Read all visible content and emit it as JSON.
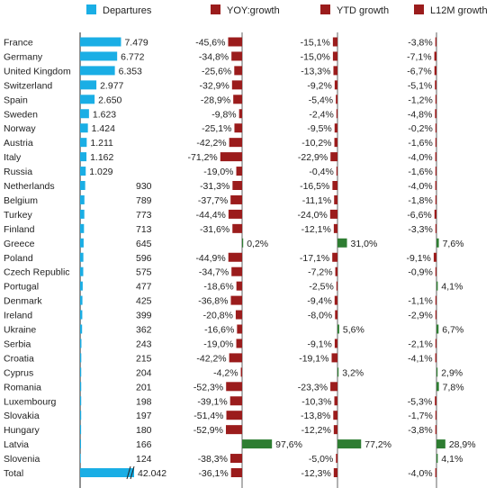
{
  "chart_data": {
    "type": "bar",
    "legend": [
      {
        "label": "Departures",
        "color": "#1aaee5"
      },
      {
        "label": "YOY:growth",
        "color": "#9b1c1c"
      },
      {
        "label": "YTD growth",
        "color": "#9b1c1c"
      },
      {
        "label": "L12M growth",
        "color": "#9b1c1c"
      }
    ],
    "negative_color": "#9b1c1c",
    "positive_color": "#2e7d32",
    "departures_color": "#1aaee5",
    "rows": [
      {
        "country": "France",
        "departures": 7479,
        "departures_label": "7.479",
        "yoy": -45.6,
        "yoy_label": "-45,6%",
        "ytd": -15.1,
        "ytd_label": "-15,1%",
        "l12m": -3.8,
        "l12m_label": "-3,8%"
      },
      {
        "country": "Germany",
        "departures": 6772,
        "departures_label": "6.772",
        "yoy": -34.8,
        "yoy_label": "-34,8%",
        "ytd": -15.0,
        "ytd_label": "-15,0%",
        "l12m": -7.1,
        "l12m_label": "-7,1%"
      },
      {
        "country": "United Kingdom",
        "departures": 6353,
        "departures_label": "6.353",
        "yoy": -25.6,
        "yoy_label": "-25,6%",
        "ytd": -13.3,
        "ytd_label": "-13,3%",
        "l12m": -6.7,
        "l12m_label": "-6,7%"
      },
      {
        "country": "Switzerland",
        "departures": 2977,
        "departures_label": "2.977",
        "yoy": -32.9,
        "yoy_label": "-32,9%",
        "ytd": -9.2,
        "ytd_label": "-9,2%",
        "l12m": -5.1,
        "l12m_label": "-5,1%"
      },
      {
        "country": "Spain",
        "departures": 2650,
        "departures_label": "2.650",
        "yoy": -28.9,
        "yoy_label": "-28,9%",
        "ytd": -5.4,
        "ytd_label": "-5,4%",
        "l12m": -1.2,
        "l12m_label": "-1,2%"
      },
      {
        "country": "Sweden",
        "departures": 1623,
        "departures_label": "1.623",
        "yoy": -9.8,
        "yoy_label": "-9,8%",
        "ytd": -2.4,
        "ytd_label": "-2,4%",
        "l12m": -4.8,
        "l12m_label": "-4,8%"
      },
      {
        "country": "Norway",
        "departures": 1424,
        "departures_label": "1.424",
        "yoy": -25.1,
        "yoy_label": "-25,1%",
        "ytd": -9.5,
        "ytd_label": "-9,5%",
        "l12m": -0.2,
        "l12m_label": "-0,2%"
      },
      {
        "country": "Austria",
        "departures": 1211,
        "departures_label": "1.211",
        "yoy": -42.2,
        "yoy_label": "-42,2%",
        "ytd": -10.2,
        "ytd_label": "-10,2%",
        "l12m": -1.6,
        "l12m_label": "-1,6%"
      },
      {
        "country": "Italy",
        "departures": 1162,
        "departures_label": "1.162",
        "yoy": -71.2,
        "yoy_label": "-71,2%",
        "ytd": -22.9,
        "ytd_label": "-22,9%",
        "l12m": -4.0,
        "l12m_label": "-4,0%"
      },
      {
        "country": "Russia",
        "departures": 1029,
        "departures_label": "1.029",
        "yoy": -19.0,
        "yoy_label": "-19,0%",
        "ytd": -0.4,
        "ytd_label": "-0,4%",
        "l12m": -1.6,
        "l12m_label": "-1,6%"
      },
      {
        "country": "Netherlands",
        "departures": 930,
        "departures_label": "930",
        "yoy": -31.3,
        "yoy_label": "-31,3%",
        "ytd": -16.5,
        "ytd_label": "-16,5%",
        "l12m": -4.0,
        "l12m_label": "-4,0%"
      },
      {
        "country": "Belgium",
        "departures": 789,
        "departures_label": "789",
        "yoy": -37.7,
        "yoy_label": "-37,7%",
        "ytd": -11.1,
        "ytd_label": "-11,1%",
        "l12m": -1.8,
        "l12m_label": "-1,8%"
      },
      {
        "country": "Turkey",
        "departures": 773,
        "departures_label": "773",
        "yoy": -44.4,
        "yoy_label": "-44,4%",
        "ytd": -24.0,
        "ytd_label": "-24,0%",
        "l12m": -6.6,
        "l12m_label": "-6,6%"
      },
      {
        "country": "Finland",
        "departures": 713,
        "departures_label": "713",
        "yoy": -31.6,
        "yoy_label": "-31,6%",
        "ytd": -12.1,
        "ytd_label": "-12,1%",
        "l12m": -3.3,
        "l12m_label": "-3,3%"
      },
      {
        "country": "Greece",
        "departures": 645,
        "departures_label": "645",
        "yoy": 0.2,
        "yoy_label": "0,2%",
        "ytd": 31.0,
        "ytd_label": "31,0%",
        "l12m": 7.6,
        "l12m_label": "7,6%"
      },
      {
        "country": "Poland",
        "departures": 596,
        "departures_label": "596",
        "yoy": -44.9,
        "yoy_label": "-44,9%",
        "ytd": -17.1,
        "ytd_label": "-17,1%",
        "l12m": -9.1,
        "l12m_label": "-9,1%"
      },
      {
        "country": "Czech Republic",
        "departures": 575,
        "departures_label": "575",
        "yoy": -34.7,
        "yoy_label": "-34,7%",
        "ytd": -7.2,
        "ytd_label": "-7,2%",
        "l12m": -0.9,
        "l12m_label": "-0,9%"
      },
      {
        "country": "Portugal",
        "departures": 477,
        "departures_label": "477",
        "yoy": -18.6,
        "yoy_label": "-18,6%",
        "ytd": -2.5,
        "ytd_label": "-2,5%",
        "l12m": 4.1,
        "l12m_label": "4,1%"
      },
      {
        "country": "Denmark",
        "departures": 425,
        "departures_label": "425",
        "yoy": -36.8,
        "yoy_label": "-36,8%",
        "ytd": -9.4,
        "ytd_label": "-9,4%",
        "l12m": -1.1,
        "l12m_label": "-1,1%"
      },
      {
        "country": "Ireland",
        "departures": 399,
        "departures_label": "399",
        "yoy": -20.8,
        "yoy_label": "-20,8%",
        "ytd": -8.0,
        "ytd_label": "-8,0%",
        "l12m": -2.9,
        "l12m_label": "-2,9%"
      },
      {
        "country": "Ukraine",
        "departures": 362,
        "departures_label": "362",
        "yoy": -16.6,
        "yoy_label": "-16,6%",
        "ytd": 5.6,
        "ytd_label": "5,6%",
        "l12m": 6.7,
        "l12m_label": "6,7%"
      },
      {
        "country": "Serbia",
        "departures": 243,
        "departures_label": "243",
        "yoy": -19.0,
        "yoy_label": "-19,0%",
        "ytd": -9.1,
        "ytd_label": "-9,1%",
        "l12m": -2.1,
        "l12m_label": "-2,1%"
      },
      {
        "country": "Croatia",
        "departures": 215,
        "departures_label": "215",
        "yoy": -42.2,
        "yoy_label": "-42,2%",
        "ytd": -19.1,
        "ytd_label": "-19,1%",
        "l12m": -4.1,
        "l12m_label": "-4,1%"
      },
      {
        "country": "Cyprus",
        "departures": 204,
        "departures_label": "204",
        "yoy": -4.2,
        "yoy_label": "-4,2%",
        "ytd": 3.2,
        "ytd_label": "3,2%",
        "l12m": 2.9,
        "l12m_label": "2,9%"
      },
      {
        "country": "Romania",
        "departures": 201,
        "departures_label": "201",
        "yoy": -52.3,
        "yoy_label": "-52,3%",
        "ytd": -23.3,
        "ytd_label": "-23,3%",
        "l12m": 7.8,
        "l12m_label": "7,8%"
      },
      {
        "country": "Luxembourg",
        "departures": 198,
        "departures_label": "198",
        "yoy": -39.1,
        "yoy_label": "-39,1%",
        "ytd": -10.3,
        "ytd_label": "-10,3%",
        "l12m": -5.3,
        "l12m_label": "-5,3%"
      },
      {
        "country": "Slovakia",
        "departures": 197,
        "departures_label": "197",
        "yoy": -51.4,
        "yoy_label": "-51,4%",
        "ytd": -13.8,
        "ytd_label": "-13,8%",
        "l12m": -1.7,
        "l12m_label": "-1,7%"
      },
      {
        "country": "Hungary",
        "departures": 180,
        "departures_label": "180",
        "yoy": -52.9,
        "yoy_label": "-52,9%",
        "ytd": -12.2,
        "ytd_label": "-12,2%",
        "l12m": -3.8,
        "l12m_label": "-3,8%"
      },
      {
        "country": "Latvia",
        "departures": 166,
        "departures_label": "166",
        "yoy": 97.6,
        "yoy_label": "97,6%",
        "ytd": 77.2,
        "ytd_label": "77,2%",
        "l12m": 28.9,
        "l12m_label": "28,9%"
      },
      {
        "country": "Slovenia",
        "departures": 124,
        "departures_label": "124",
        "yoy": -38.3,
        "yoy_label": "-38,3%",
        "ytd": -5.0,
        "ytd_label": "-5,0%",
        "l12m": 4.1,
        "l12m_label": "4,1%"
      },
      {
        "country": "Total",
        "departures": 42042,
        "departures_label": "42.042",
        "yoy": -36.1,
        "yoy_label": "-36,1%",
        "ytd": -12.3,
        "ytd_label": "-12,3%",
        "l12m": -4.0,
        "l12m_label": "-4,0%"
      }
    ]
  }
}
